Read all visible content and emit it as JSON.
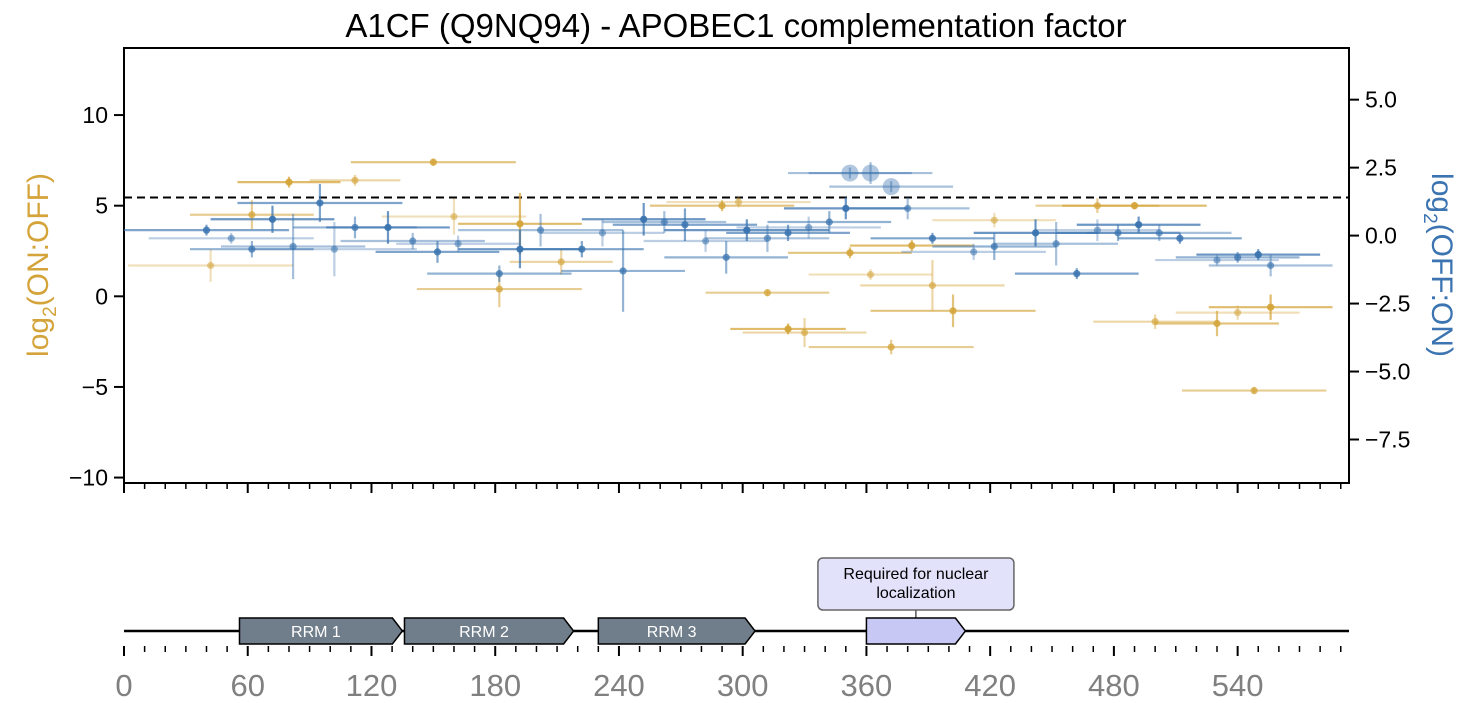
{
  "chart_data": [
    {
      "type": "scatter",
      "title": "A1CF (Q9NQ94) - APOBEC1 complementation factor",
      "ylabel_left": {
        "base": "log",
        "sub": "2",
        "rest": "(ON:OFF)"
      },
      "ylabel_right": {
        "base": "log",
        "sub": "2",
        "rest": "(OFF:ON)"
      },
      "xlim": [
        0,
        594
      ],
      "ylim_left": [
        -10.3,
        13.7
      ],
      "ylim_right": [
        -9.1,
        6.9
      ],
      "yticks_left": [
        10,
        5,
        0,
        -5,
        -10
      ],
      "yticks_left_labels": [
        "10",
        "5",
        "0",
        "−10"
      ],
      "yticks_left_labels_all": [
        "10",
        "5",
        "0",
        "−5",
        "−10"
      ],
      "yticks_right": [
        5.0,
        2.5,
        0.0,
        -2.5,
        -5.0,
        -7.5
      ],
      "yticks_right_labels": [
        "5.0",
        "2.5",
        "0.0",
        "−2.5",
        "−5.0",
        "−7.5"
      ],
      "threshold_line_left": 5.45,
      "grid": false,
      "series": [
        {
          "color": "#D4A43A",
          "axis": "left",
          "points": [
            {
              "x": 42,
              "y": 1.7,
              "xerr": 40,
              "yerr": 0.9
            },
            {
              "x": 62,
              "y": 4.5,
              "xerr": 30,
              "yerr": 0.8
            },
            {
              "x": 80,
              "y": 6.3,
              "xerr": 25,
              "yerr": 0.3
            },
            {
              "x": 112,
              "y": 6.4,
              "xerr": 22,
              "yerr": 0.3
            },
            {
              "x": 150,
              "y": 7.4,
              "xerr": 40,
              "yerr": 0.2
            },
            {
              "x": 160,
              "y": 4.4,
              "xerr": 35,
              "yerr": 1.0
            },
            {
              "x": 182,
              "y": 0.4,
              "xerr": 40,
              "yerr": 1.0
            },
            {
              "x": 192,
              "y": 4.0,
              "xerr": 30,
              "yerr": 1.7
            },
            {
              "x": 212,
              "y": 1.9,
              "xerr": 25,
              "yerr": 0.7
            },
            {
              "x": 290,
              "y": 5.0,
              "xerr": 35,
              "yerr": 0.3
            },
            {
              "x": 298,
              "y": 5.2,
              "xerr": 35,
              "yerr": 0.3
            },
            {
              "x": 312,
              "y": 0.2,
              "xerr": 30,
              "yerr": 0.2
            },
            {
              "x": 322,
              "y": -1.8,
              "xerr": 28,
              "yerr": 0.3
            },
            {
              "x": 330,
              "y": -2.0,
              "xerr": 30,
              "yerr": 0.8
            },
            {
              "x": 352,
              "y": 2.4,
              "xerr": 30,
              "yerr": 0.3
            },
            {
              "x": 362,
              "y": 1.2,
              "xerr": 30,
              "yerr": 0.3
            },
            {
              "x": 372,
              "y": -2.8,
              "xerr": 40,
              "yerr": 0.4
            },
            {
              "x": 382,
              "y": 2.8,
              "xerr": 30,
              "yerr": 0.3
            },
            {
              "x": 392,
              "y": 0.6,
              "xerr": 35,
              "yerr": 1.4
            },
            {
              "x": 402,
              "y": -0.8,
              "xerr": 40,
              "yerr": 0.9
            },
            {
              "x": 422,
              "y": 4.2,
              "xerr": 30,
              "yerr": 0.4
            },
            {
              "x": 472,
              "y": 5.0,
              "xerr": 30,
              "yerr": 0.4
            },
            {
              "x": 490,
              "y": 5.0,
              "xerr": 35,
              "yerr": 0.2
            },
            {
              "x": 500,
              "y": -1.4,
              "xerr": 30,
              "yerr": 0.4
            },
            {
              "x": 530,
              "y": -1.5,
              "xerr": 30,
              "yerr": 0.7
            },
            {
              "x": 540,
              "y": -0.9,
              "xerr": 30,
              "yerr": 0.4
            },
            {
              "x": 548,
              "y": -5.2,
              "xerr": 35,
              "yerr": 0.2
            },
            {
              "x": 556,
              "y": -0.6,
              "xerr": 30,
              "yerr": 0.7
            }
          ]
        },
        {
          "color": "#3B74B0",
          "axis": "right",
          "points": [
            {
              "x": 40,
              "y": 0.2,
              "xerr": 40,
              "yerr": 0.2
            },
            {
              "x": 52,
              "y": -0.1,
              "xerr": 40,
              "yerr": 0.2
            },
            {
              "x": 62,
              "y": -0.5,
              "xerr": 30,
              "yerr": 0.3
            },
            {
              "x": 72,
              "y": 0.6,
              "xerr": 30,
              "yerr": 0.5
            },
            {
              "x": 82,
              "y": -0.4,
              "xerr": 35,
              "yerr": 1.2
            },
            {
              "x": 95,
              "y": 1.2,
              "xerr": 40,
              "yerr": 0.7
            },
            {
              "x": 102,
              "y": -0.5,
              "xerr": 40,
              "yerr": 1.0
            },
            {
              "x": 112,
              "y": 0.3,
              "xerr": 30,
              "yerr": 0.4
            },
            {
              "x": 128,
              "y": 0.3,
              "xerr": 30,
              "yerr": 0.6
            },
            {
              "x": 140,
              "y": -0.2,
              "xerr": 35,
              "yerr": 0.3
            },
            {
              "x": 152,
              "y": -0.6,
              "xerr": 30,
              "yerr": 0.4
            },
            {
              "x": 162,
              "y": -0.3,
              "xerr": 30,
              "yerr": 0.3
            },
            {
              "x": 182,
              "y": -1.4,
              "xerr": 35,
              "yerr": 0.3
            },
            {
              "x": 192,
              "y": -0.5,
              "xerr": 30,
              "yerr": 0.7
            },
            {
              "x": 202,
              "y": 0.2,
              "xerr": 40,
              "yerr": 0.6
            },
            {
              "x": 222,
              "y": -0.5,
              "xerr": 30,
              "yerr": 0.3
            },
            {
              "x": 232,
              "y": 0.1,
              "xerr": 30,
              "yerr": 0.5
            },
            {
              "x": 242,
              "y": -1.3,
              "xerr": 30,
              "yerr": 1.5
            },
            {
              "x": 252,
              "y": 0.6,
              "xerr": 30,
              "yerr": 0.6
            },
            {
              "x": 262,
              "y": 0.5,
              "xerr": 30,
              "yerr": 0.4
            },
            {
              "x": 272,
              "y": 0.4,
              "xerr": 35,
              "yerr": 0.6
            },
            {
              "x": 282,
              "y": -0.2,
              "xerr": 30,
              "yerr": 0.4
            },
            {
              "x": 292,
              "y": -0.8,
              "xerr": 30,
              "yerr": 0.6
            },
            {
              "x": 302,
              "y": 0.2,
              "xerr": 40,
              "yerr": 0.4
            },
            {
              "x": 312,
              "y": -0.1,
              "xerr": 30,
              "yerr": 0.5
            },
            {
              "x": 322,
              "y": 0.1,
              "xerr": 30,
              "yerr": 0.3
            },
            {
              "x": 332,
              "y": 0.3,
              "xerr": 35,
              "yerr": 0.4
            },
            {
              "x": 342,
              "y": 0.5,
              "xerr": 30,
              "yerr": 0.4
            },
            {
              "x": 350,
              "y": 1.0,
              "xerr": 30,
              "yerr": 0.4
            },
            {
              "x": 380,
              "y": 1.0,
              "xerr": 30,
              "yerr": 0.4
            },
            {
              "x": 392,
              "y": -0.1,
              "xerr": 30,
              "yerr": 0.2
            },
            {
              "x": 412,
              "y": -0.6,
              "xerr": 35,
              "yerr": 0.3
            },
            {
              "x": 422,
              "y": -0.4,
              "xerr": 30,
              "yerr": 0.5
            },
            {
              "x": 442,
              "y": 0.1,
              "xerr": 30,
              "yerr": 0.5
            },
            {
              "x": 452,
              "y": -0.3,
              "xerr": 30,
              "yerr": 0.8
            },
            {
              "x": 462,
              "y": -1.4,
              "xerr": 30,
              "yerr": 0.2
            },
            {
              "x": 472,
              "y": 0.2,
              "xerr": 30,
              "yerr": 0.4
            },
            {
              "x": 482,
              "y": 0.1,
              "xerr": 30,
              "yerr": 0.3
            },
            {
              "x": 492,
              "y": 0.4,
              "xerr": 30,
              "yerr": 0.3
            },
            {
              "x": 502,
              "y": 0.1,
              "xerr": 35,
              "yerr": 0.3
            },
            {
              "x": 512,
              "y": -0.1,
              "xerr": 30,
              "yerr": 0.2
            },
            {
              "x": 530,
              "y": -0.9,
              "xerr": 30,
              "yerr": 0.2
            },
            {
              "x": 540,
              "y": -0.8,
              "xerr": 30,
              "yerr": 0.2
            },
            {
              "x": 550,
              "y": -0.7,
              "xerr": 30,
              "yerr": 0.2
            },
            {
              "x": 556,
              "y": -1.1,
              "xerr": 30,
              "yerr": 0.4
            }
          ]
        },
        {
          "color": "#3B74B0",
          "axis": "right",
          "kind": "large-markers",
          "points": [
            {
              "x": 352,
              "y": 2.3,
              "xerr": 30,
              "yerr": 0.2
            },
            {
              "x": 362,
              "y": 2.3,
              "xerr": 30,
              "yerr": 0.4
            },
            {
              "x": 372,
              "y": 1.8,
              "xerr": 30,
              "yerr": 0.2
            }
          ]
        }
      ]
    },
    {
      "type": "diagram",
      "xticks": [
        0,
        60,
        120,
        180,
        240,
        300,
        360,
        420,
        480,
        540
      ],
      "xtick_labels": [
        "0",
        "60",
        "120",
        "180",
        "240",
        "300",
        "360",
        "420",
        "480",
        "540"
      ],
      "domains": [
        {
          "label": "RRM 1",
          "start": 56,
          "end": 135,
          "color": "#707D8A"
        },
        {
          "label": "RRM 2",
          "start": 136,
          "end": 218,
          "color": "#707D8A"
        },
        {
          "label": "RRM 3",
          "start": 230,
          "end": 306,
          "color": "#707D8A"
        },
        {
          "label": "",
          "start": 360,
          "end": 408,
          "color": "#C8C8F4"
        }
      ],
      "callout": {
        "lines": [
          "Required for nuclear",
          "localization"
        ],
        "anchor": 384,
        "fill": "#E2E2FA"
      }
    }
  ]
}
